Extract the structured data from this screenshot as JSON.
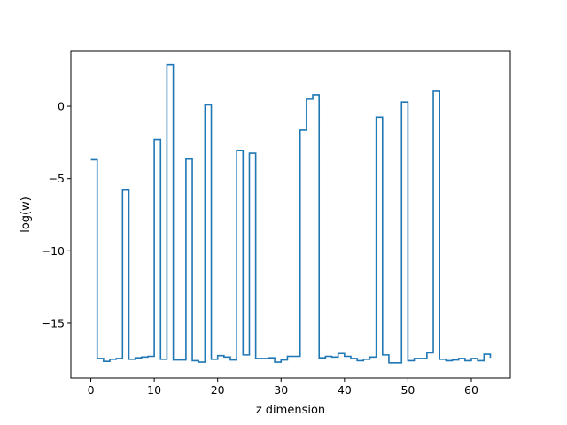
{
  "chart_data": {
    "type": "line",
    "drawstyle": "steps-post",
    "title": "",
    "xlabel": "z dimension",
    "ylabel": "log(w)",
    "xlim": [
      -3.15,
      66.15
    ],
    "ylim": [
      -18.8,
      3.8
    ],
    "xticks": [
      0,
      10,
      20,
      30,
      40,
      50,
      60
    ],
    "yticks": [
      0,
      -5,
      -10,
      -15
    ],
    "line_color": "#1f77b4",
    "grid": false,
    "x": [
      0,
      1,
      2,
      3,
      4,
      5,
      6,
      7,
      8,
      9,
      10,
      11,
      12,
      13,
      14,
      15,
      16,
      17,
      18,
      19,
      20,
      21,
      22,
      23,
      24,
      25,
      26,
      27,
      28,
      29,
      30,
      31,
      32,
      33,
      34,
      35,
      36,
      37,
      38,
      39,
      40,
      41,
      42,
      43,
      44,
      45,
      46,
      47,
      48,
      49,
      50,
      51,
      52,
      53,
      54,
      55,
      56,
      57,
      58,
      59,
      60,
      61,
      62,
      63
    ],
    "values": [
      -3.7,
      -17.45,
      -17.65,
      -17.5,
      -17.45,
      -5.8,
      -17.5,
      -17.4,
      -17.35,
      -17.3,
      -2.3,
      -17.5,
      2.9,
      -17.55,
      -17.55,
      -3.65,
      -17.6,
      -17.7,
      0.1,
      -17.5,
      -17.25,
      -17.35,
      -17.55,
      -3.05,
      -17.2,
      -3.25,
      -17.45,
      -17.45,
      -17.4,
      -17.7,
      -17.55,
      -17.3,
      -17.3,
      -1.65,
      0.5,
      0.8,
      -17.4,
      -17.3,
      -17.35,
      -17.1,
      -17.3,
      -17.45,
      -17.6,
      -17.5,
      -17.35,
      -0.75,
      -17.2,
      -17.75,
      -17.75,
      0.3,
      -17.6,
      -17.45,
      -17.45,
      -17.05,
      1.05,
      -17.5,
      -17.6,
      -17.55,
      -17.45,
      -17.6,
      -17.45,
      -17.6,
      -17.15,
      -17.4
    ]
  }
}
